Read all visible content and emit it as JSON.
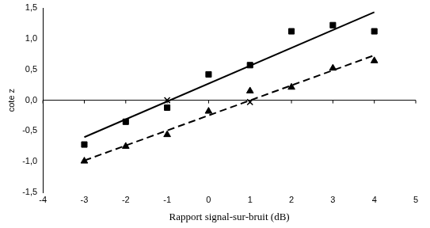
{
  "chart_data": {
    "type": "scatter",
    "x_label": "Rapport signal-sur-bruit (dB)",
    "y_label": "cote z",
    "xlim": [
      -4,
      5
    ],
    "xticks": [
      -4,
      -3,
      -2,
      -1,
      0,
      1,
      2,
      3,
      4,
      5
    ],
    "ylim": [
      -1.5,
      1.5
    ],
    "yticks": [
      {
        "value": -1.5,
        "label": "-1,5"
      },
      {
        "value": -1.0,
        "label": "-1,0"
      },
      {
        "value": -0.5,
        "label": "-0,5"
      },
      {
        "value": 0.0,
        "label": "0,0"
      },
      {
        "value": 0.5,
        "label": "0,5"
      },
      {
        "value": 1.0,
        "label": "1,0"
      },
      {
        "value": 1.5,
        "label": "1,5"
      }
    ],
    "grid": false,
    "series": [
      {
        "type": "scatter",
        "marker": "square",
        "line_style": "none",
        "color": "#000000",
        "x": [
          -3,
          -2,
          -1,
          0,
          1,
          2,
          3,
          4
        ],
        "values": [
          -0.72,
          -0.35,
          -0.12,
          0.42,
          0.57,
          1.12,
          1.22,
          1.12
        ]
      },
      {
        "type": "scatter",
        "marker": "triangle",
        "line_style": "none",
        "color": "#000000",
        "x": [
          -3,
          -2,
          -1,
          0,
          1,
          2,
          3,
          4
        ],
        "values": [
          -0.99,
          -0.75,
          -0.56,
          -0.18,
          0.15,
          0.21,
          0.52,
          0.64
        ]
      },
      {
        "type": "line",
        "marker": "none",
        "line_style": "solid",
        "color": "#000000",
        "x": [
          -3,
          4
        ],
        "values": [
          -0.6,
          1.43
        ]
      },
      {
        "type": "line",
        "marker": "none",
        "line_style": "dashed",
        "color": "#000000",
        "x": [
          -3,
          4
        ],
        "values": [
          -0.98,
          0.73
        ]
      },
      {
        "type": "scatter",
        "marker": "cross",
        "line_style": "none",
        "color": "#000000",
        "x": [
          -1,
          1
        ],
        "values": [
          0.0,
          -0.03
        ]
      }
    ]
  }
}
